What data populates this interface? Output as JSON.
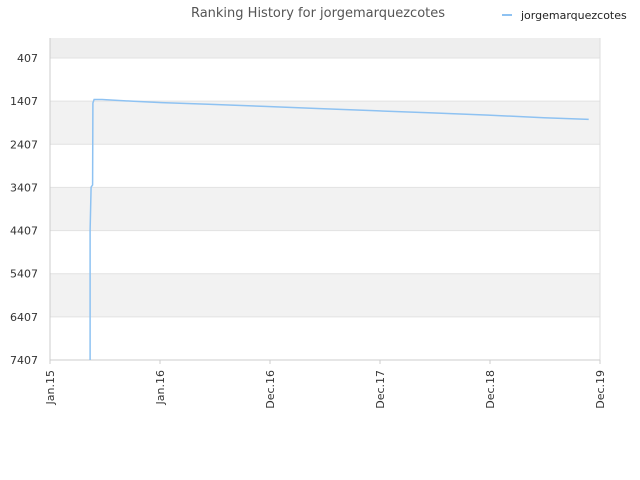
{
  "chart_data": {
    "type": "line",
    "title": "Ranking History for jorgemarquezcotes",
    "xlabel": "",
    "ylabel": "",
    "y_inverted": true,
    "ylim": [
      7407,
      407
    ],
    "xlim": [
      "2015-01-01",
      "2019-12-01"
    ],
    "y_ticks": [
      "407",
      "1407",
      "2407",
      "3407",
      "4407",
      "5407",
      "6407",
      "7407"
    ],
    "x_ticks": [
      "Jan.15",
      "Jan.16",
      "Dec.16",
      "Dec.17",
      "Dec.18",
      "Dec.19"
    ],
    "grid": true,
    "legend_position": "top-right",
    "colors": {
      "series": "#8ec2f2",
      "band_dark": "#f2f2f2",
      "band_light": "#ffffff"
    },
    "series": [
      {
        "name": "jorgemarquezcotes",
        "points": [
          {
            "x": "2015-05-12",
            "y": 7407
          },
          {
            "x": "2015-05-12",
            "y": 4407
          },
          {
            "x": "2015-05-15",
            "y": 3400
          },
          {
            "x": "2015-05-20",
            "y": 3350
          },
          {
            "x": "2015-05-21",
            "y": 1450
          },
          {
            "x": "2015-05-25",
            "y": 1370
          },
          {
            "x": "2015-06-20",
            "y": 1370
          },
          {
            "x": "2015-10-01",
            "y": 1410
          },
          {
            "x": "2016-01-01",
            "y": 1440
          },
          {
            "x": "2016-06-01",
            "y": 1480
          },
          {
            "x": "2016-12-01",
            "y": 1530
          },
          {
            "x": "2017-06-01",
            "y": 1580
          },
          {
            "x": "2017-12-01",
            "y": 1630
          },
          {
            "x": "2018-06-01",
            "y": 1680
          },
          {
            "x": "2018-12-01",
            "y": 1730
          },
          {
            "x": "2019-06-01",
            "y": 1790
          },
          {
            "x": "2019-10-25",
            "y": 1830
          }
        ]
      }
    ]
  }
}
